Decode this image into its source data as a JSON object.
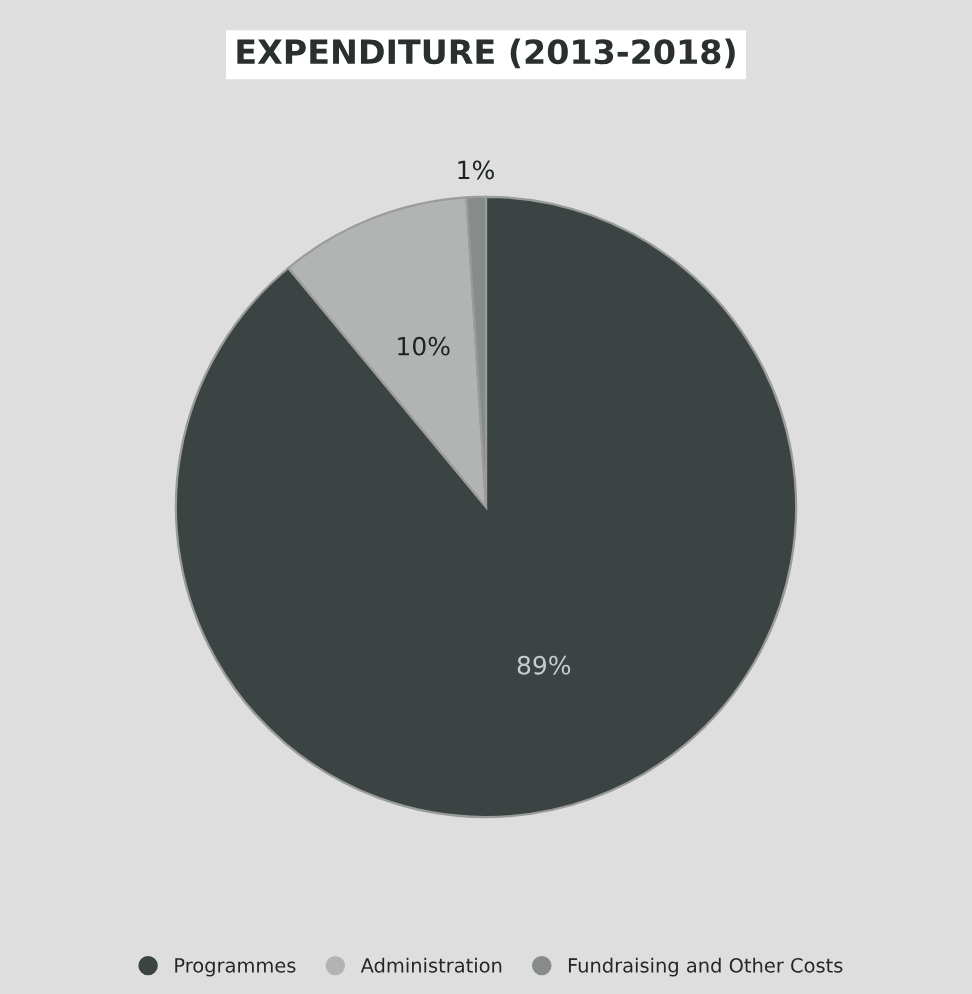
{
  "chart_data": {
    "type": "pie",
    "title": "EXPENDITURE (2013-2018)",
    "categories": [
      "Programmes",
      "Administration",
      "Fundraising and Other Costs"
    ],
    "values": [
      89,
      10,
      1
    ],
    "colors": [
      "#3b4443",
      "#b2b4b4",
      "#878b8b"
    ],
    "value_labels": [
      "89%",
      "10%",
      "1%"
    ],
    "legend": "bottom"
  }
}
